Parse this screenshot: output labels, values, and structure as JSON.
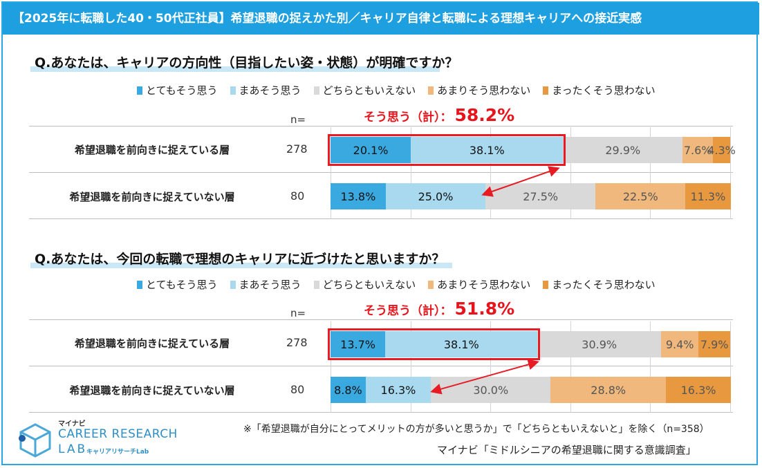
{
  "header": {
    "title": "【2025年に転職した40・50代正社員】希望退職の捉えかた別／キャリア自律と転職による理想キャリアへの接近実感"
  },
  "colors": {
    "strongly_agree": "#3aa9e0",
    "somewhat_agree": "#a9d9ef",
    "neutral": "#d9d9d9",
    "somewhat_disagree": "#f0b87c",
    "strongly_disagree": "#e8993f",
    "accent_red": "#e61b23",
    "header_bg": "#1ea0e0"
  },
  "legend": [
    {
      "label": "とてもそう思う",
      "color": "#3aa9e0"
    },
    {
      "label": "まあそう思う",
      "color": "#a9d9ef"
    },
    {
      "label": "どちらともいえない",
      "color": "#d9d9d9"
    },
    {
      "label": "あまりそう思わない",
      "color": "#f0b87c"
    },
    {
      "label": "まったくそう思わない",
      "color": "#e8993f"
    }
  ],
  "n_label": "n=",
  "chart_data": [
    {
      "type": "bar",
      "orientation": "horizontal-stacked-100",
      "title": "Q.あなたは、キャリアの方向性（目指したい姿・状態）が明確ですか？",
      "summary_label": "そう思う（計）：",
      "summary_value": "58.2%",
      "categories": [
        "希望退職を前向きに捉えている層",
        "希望退職を前向きに捉えていない層"
      ],
      "n": [
        "278",
        "80"
      ],
      "series": [
        {
          "name": "とてもそう思う",
          "values": [
            20.1,
            13.8
          ]
        },
        {
          "name": "まあそう思う",
          "values": [
            38.1,
            25.0
          ]
        },
        {
          "name": "どちらともいえない",
          "values": [
            29.9,
            27.5
          ]
        },
        {
          "name": "あまりそう思わない",
          "values": [
            7.6,
            22.5
          ]
        },
        {
          "name": "まったくそう思わない",
          "values": [
            4.3,
            11.3
          ]
        }
      ],
      "xlim": [
        0,
        100
      ]
    },
    {
      "type": "bar",
      "orientation": "horizontal-stacked-100",
      "title": "Q.あなたは、今回の転職で理想のキャリアに近づけたと思いますか？",
      "summary_label": "そう思う（計）：",
      "summary_value": "51.8%",
      "categories": [
        "希望退職を前向きに捉えている層",
        "希望退職を前向きに捉えていない層"
      ],
      "n": [
        "278",
        "80"
      ],
      "series": [
        {
          "name": "とてもそう思う",
          "values": [
            13.7,
            8.8
          ]
        },
        {
          "name": "まあそう思う",
          "values": [
            38.1,
            16.3
          ]
        },
        {
          "name": "どちらともいえない",
          "values": [
            30.9,
            30.0
          ]
        },
        {
          "name": "あまりそう思わない",
          "values": [
            9.4,
            28.8
          ]
        },
        {
          "name": "まったくそう思わない",
          "values": [
            7.9,
            16.3
          ]
        }
      ],
      "xlim": [
        0,
        100
      ]
    }
  ],
  "footnote": "※「希望退職が自分にとってメリットの方が多いと思うか」で「どちらともいえないと」を除く（n=358）",
  "source": "マイナビ「ミドルシニアの希望退職に関する意識調査」",
  "logo": {
    "small": "マイナビ",
    "main": "CAREER RESEARCH",
    "lab": "LAB",
    "sub": "キャリアリサーチLab"
  }
}
